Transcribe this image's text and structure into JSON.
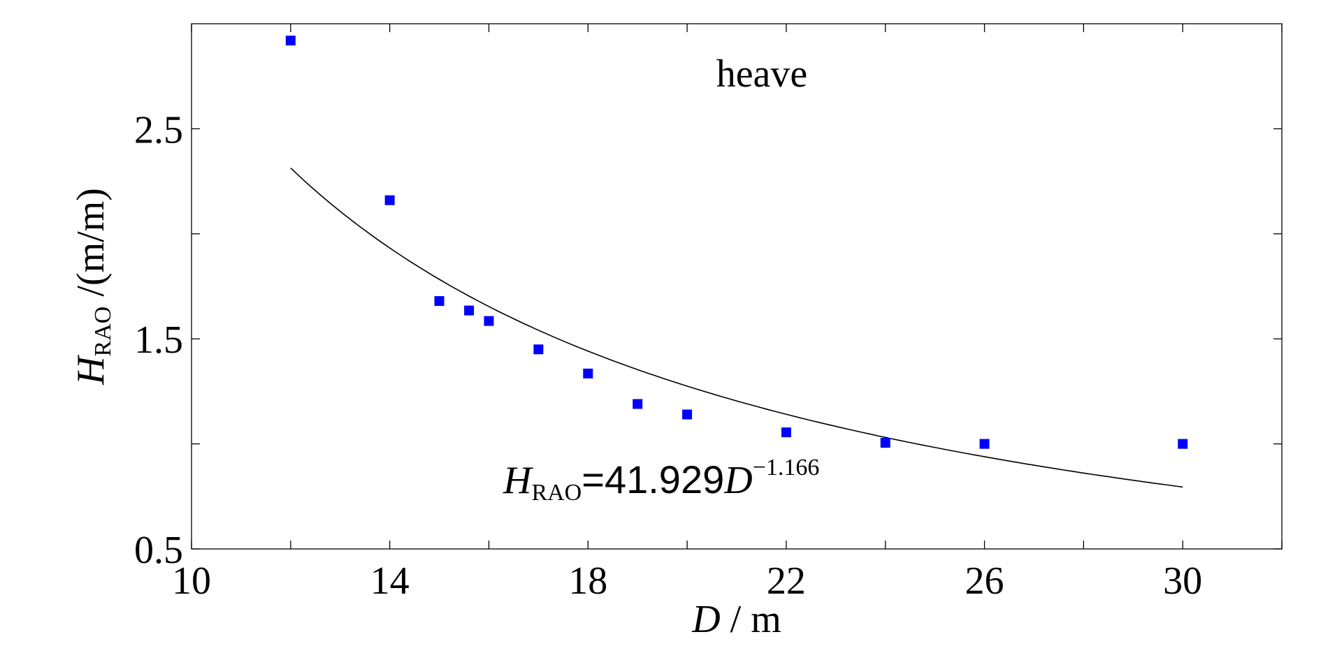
{
  "chart_data": {
    "type": "scatter",
    "title": "heave",
    "xlabel": {
      "symbol": "D",
      "unit": " / m"
    },
    "ylabel": {
      "symbol": "H",
      "subscript": "RAO",
      "unit": " /(m/m)"
    },
    "xlim": [
      10,
      32
    ],
    "ylim": [
      0.5,
      3.0
    ],
    "xticks_minor": [
      10,
      12,
      14,
      16,
      18,
      20,
      22,
      24,
      26,
      28,
      30,
      32
    ],
    "xtick_labels": [
      "10",
      "14",
      "18",
      "22",
      "26",
      "30"
    ],
    "xtick_label_values": [
      10,
      14,
      18,
      22,
      26,
      30
    ],
    "yticks_minor": [
      0.5,
      1.0,
      1.5,
      2.0,
      2.5
    ],
    "ytick_labels": [
      "0.5",
      "1.5",
      "2.5"
    ],
    "ytick_label_values": [
      0.5,
      1.5,
      2.5
    ],
    "series": [
      {
        "name": "data",
        "marker": "square",
        "color": "#0000ff",
        "x": [
          12,
          14,
          15,
          15.6,
          16,
          17,
          18,
          19,
          20,
          22,
          24,
          26,
          30
        ],
        "y": [
          2.92,
          2.16,
          1.68,
          1.635,
          1.585,
          1.45,
          1.335,
          1.19,
          1.14,
          1.055,
          1.005,
          1.0,
          1.0
        ]
      },
      {
        "name": "fit",
        "line": true,
        "color": "#000000",
        "x_range": [
          12,
          30
        ],
        "coefficient": 41.929,
        "exponent": -1.166
      }
    ],
    "annotation": {
      "symbol": "H",
      "subscript": "RAO",
      "equals_coef": "=41.929",
      "var": "D",
      "exponent": "−1.166"
    },
    "grid": false
  }
}
